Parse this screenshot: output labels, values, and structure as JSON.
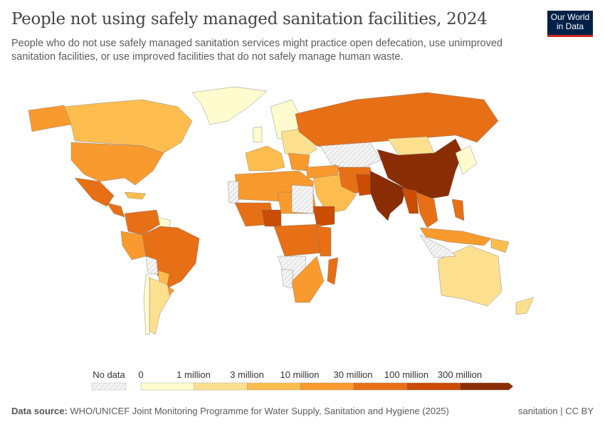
{
  "header": {
    "title": "People not using safely managed sanitation facilities, 2024",
    "subtitle": "People who do not use safely managed sanitation services might practice open defecation, use unimproved sanitation facilities, or use improved facilities that do not safely manage human waste.",
    "logo_text": "Our World in Data"
  },
  "legend": {
    "no_data_label": "No data",
    "tick_labels": [
      "0",
      "1 million",
      "3 million",
      "10 million",
      "30 million",
      "100 million",
      "300 million"
    ],
    "colors": [
      "#fefbcf",
      "#fde08f",
      "#fdbd4e",
      "#f99a2e",
      "#e76f16",
      "#cb4c03",
      "#8b2d04"
    ],
    "no_data_color": "#eeeeee"
  },
  "footer": {
    "source_label": "Data source:",
    "source_text": "WHO/UNICEF Joint Monitoring Programme for Water Supply, Sanitation and Hygiene (2025)",
    "right_text": "sanitation | CC BY"
  }
}
